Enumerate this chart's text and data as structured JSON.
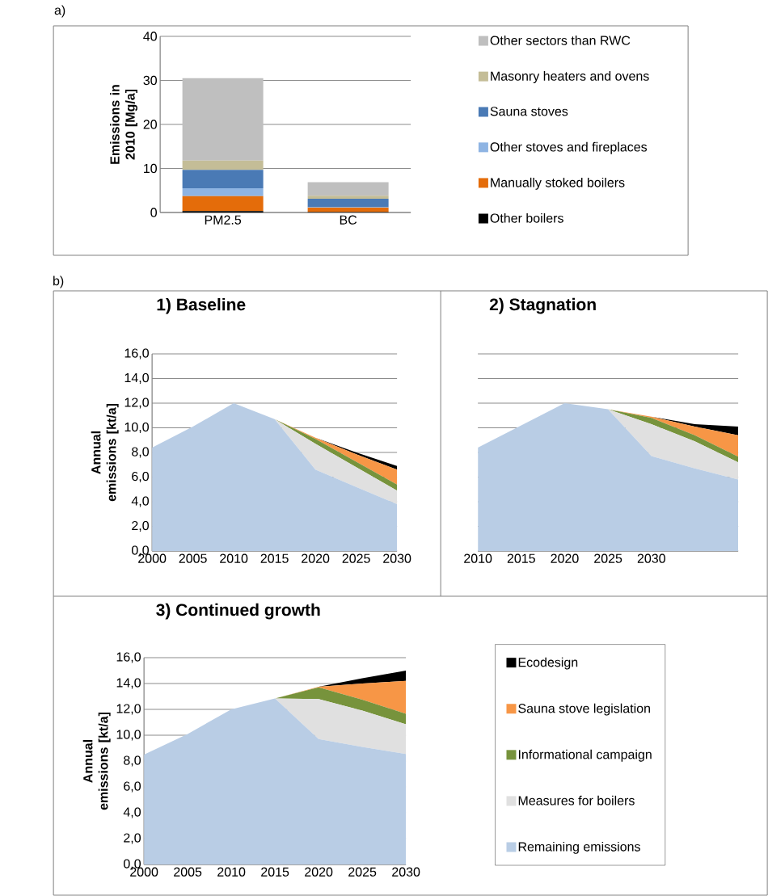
{
  "chart_data": [
    {
      "type": "bar",
      "stacked": true,
      "ylabel": "Emissions in 2010 [Mg/a]",
      "categories": [
        "PM2.5",
        "BC"
      ],
      "series": [
        {
          "name": "Other boilers",
          "color": "#000000",
          "values": [
            0.3,
            0.1
          ]
        },
        {
          "name": "Manually stoked boilers",
          "color": "#e46c0a",
          "values": [
            3.4,
            1.0
          ]
        },
        {
          "name": "Other stoves and fireplaces",
          "color": "#8eb4e3",
          "values": [
            1.8,
            0.1
          ]
        },
        {
          "name": "Sauna stoves",
          "color": "#4a7ab5",
          "values": [
            4.2,
            1.9
          ]
        },
        {
          "name": "Masonry heaters and ovens",
          "color": "#c4bd97",
          "values": [
            2.1,
            0.7
          ]
        },
        {
          "name": "Other sectors than RWC",
          "color": "#bfbfbf",
          "values": [
            18.7,
            3.1
          ]
        }
      ],
      "ylim": [
        0,
        40
      ],
      "yticks": [
        0,
        10,
        20,
        30,
        40
      ],
      "grid": "y",
      "legend": "right",
      "annotations": [
        "a)"
      ]
    },
    {
      "type": "area",
      "stacked": true,
      "title": "1) Baseline",
      "ylabel": "Annual emissions [kt/a]",
      "categories": [
        "2000",
        "2005",
        "2010",
        "2015",
        "2020",
        "2025",
        "2030"
      ],
      "series": [
        {
          "color": "#b9cde5",
          "values": [
            8.4,
            10.1,
            12.0,
            10.7,
            6.6,
            5.2,
            3.8
          ]
        },
        {
          "color": "#e0e0e0",
          "values": [
            0,
            0,
            0,
            0,
            2.1,
            1.6,
            1.1
          ]
        },
        {
          "color": "#77933c",
          "values": [
            0,
            0,
            0,
            0,
            0.4,
            0.45,
            0.5
          ]
        },
        {
          "color": "#f79646",
          "values": [
            0,
            0,
            0,
            0,
            0.1,
            0.6,
            1.2
          ]
        },
        {
          "color": "#000000",
          "values": [
            0,
            0,
            0,
            0,
            0,
            0.15,
            0.3
          ]
        }
      ],
      "ylim": [
        0,
        16
      ],
      "yticks": [
        {
          "value": 0,
          "label": "0,0"
        },
        {
          "value": 2,
          "label": "2,0"
        },
        {
          "value": 4,
          "label": "4,0"
        },
        {
          "value": 6,
          "label": "6,0"
        },
        {
          "value": 8,
          "label": "8,0"
        },
        {
          "value": 10,
          "label": "10,0"
        },
        {
          "value": 12,
          "label": "12,0"
        },
        {
          "value": 14,
          "label": "14,0"
        },
        {
          "value": 16,
          "label": "16,0"
        }
      ],
      "grid": "y",
      "annotations": [
        "b)"
      ]
    },
    {
      "type": "area",
      "stacked": true,
      "title": "2) Stagnation",
      "categories": [
        "2010",
        "2015",
        "2020",
        "2025",
        "2030",
        null,
        null
      ],
      "series": [
        {
          "color": "#b9cde5",
          "values": [
            8.4,
            10.2,
            12.0,
            11.5,
            7.7,
            6.7,
            5.8
          ]
        },
        {
          "color": "#e0e0e0",
          "values": [
            0,
            0,
            0,
            0,
            2.6,
            2.2,
            1.4
          ]
        },
        {
          "color": "#77933c",
          "values": [
            0,
            0,
            0,
            0,
            0.5,
            0.5,
            0.45
          ]
        },
        {
          "color": "#f79646",
          "values": [
            0,
            0,
            0,
            0,
            0.1,
            0.7,
            1.75
          ]
        },
        {
          "color": "#000000",
          "values": [
            0,
            0,
            0,
            0,
            0,
            0.2,
            0.7
          ]
        }
      ],
      "ylim": [
        0,
        16
      ],
      "yticks": [
        {
          "value": 0,
          "label": null
        },
        {
          "value": 2,
          "label": null
        },
        {
          "value": 4,
          "label": null
        },
        {
          "value": 6,
          "label": null
        },
        {
          "value": 8,
          "label": null
        },
        {
          "value": 10,
          "label": null
        },
        {
          "value": 12,
          "label": null
        },
        {
          "value": 14,
          "label": null
        },
        {
          "value": 16,
          "label": null
        }
      ],
      "tick_labels": "x",
      "grid": "y"
    },
    {
      "type": "area",
      "stacked": true,
      "title": "3) Continued growth",
      "ylabel": "Annual emissions [kt/a]",
      "categories": [
        "2000",
        "2005",
        "2010",
        "2015",
        "2020",
        "2025",
        "2030"
      ],
      "series": [
        {
          "name": "Remaining emissions",
          "color": "#b9cde5",
          "values": [
            8.5,
            10.1,
            12.0,
            12.85,
            9.7,
            9.1,
            8.55
          ]
        },
        {
          "name": "Measures for boilers",
          "color": "#e0e0e0",
          "values": [
            0,
            0,
            0,
            0,
            3.1,
            2.8,
            2.3
          ]
        },
        {
          "name": "Informational campaign",
          "color": "#77933c",
          "values": [
            0,
            0,
            0,
            0,
            0.9,
            0.85,
            0.8
          ]
        },
        {
          "name": "Sauna stove legislation",
          "color": "#f79646",
          "values": [
            0,
            0,
            0,
            0,
            0.05,
            1.25,
            2.55
          ]
        },
        {
          "name": "Ecodesign",
          "color": "#000000",
          "values": [
            0,
            0,
            0,
            0,
            0,
            0.4,
            0.8
          ]
        }
      ],
      "ylim": [
        0,
        16
      ],
      "yticks": [
        {
          "value": 0,
          "label": "0,0"
        },
        {
          "value": 2,
          "label": "2,0"
        },
        {
          "value": 4,
          "label": "4,0"
        },
        {
          "value": 6,
          "label": "6,0"
        },
        {
          "value": 8,
          "label": "8,0"
        },
        {
          "value": 10,
          "label": "10,0"
        },
        {
          "value": 12,
          "label": "12,0"
        },
        {
          "value": 14,
          "label": "14,0"
        },
        {
          "value": 16,
          "label": "16,0"
        }
      ],
      "grid": "y",
      "legend": "right"
    }
  ]
}
